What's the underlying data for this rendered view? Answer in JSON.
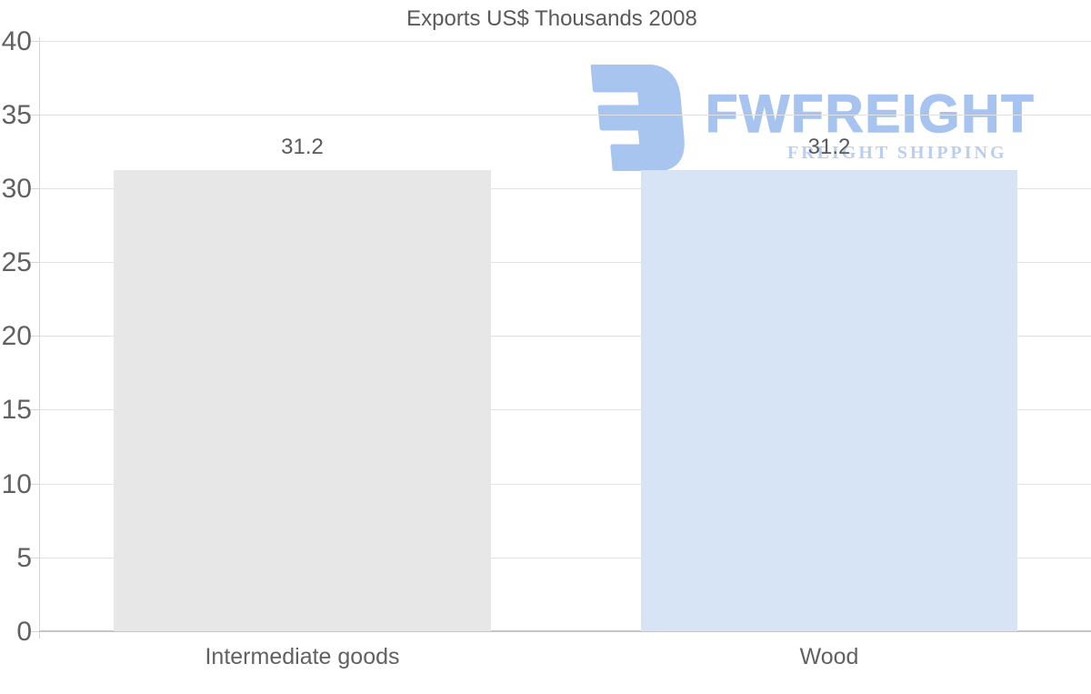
{
  "chart_data": {
    "type": "bar",
    "title": "Exports US$ Thousands 2008",
    "categories": [
      "Intermediate goods",
      "Wood"
    ],
    "values": [
      31.2,
      31.2
    ],
    "data_labels": [
      "31.2",
      "31.2"
    ],
    "xlabel": "",
    "ylabel": "",
    "ylim": [
      0,
      40
    ],
    "yticks": [
      0,
      5,
      10,
      15,
      20,
      25,
      30,
      35,
      40
    ],
    "grid": true,
    "legend": false,
    "bar_colors": [
      "#e7e7e7",
      "#d6e4f6"
    ]
  },
  "watermark": {
    "brand": "FWFREIGHT",
    "tagline": "FREIGHT SHIPPING",
    "icon": "fwfreight-logo-icon",
    "brand_color": "#a6c4ef",
    "tagline_color": "#b9cef2",
    "icon_color": "#a8c5f0"
  },
  "colors": {
    "title": "#5a5a5a",
    "axis_label": "#616161",
    "gridline": "#e2e2e2",
    "axis_line": "#d6d6d6",
    "baseline": "#c6c6c6",
    "value_label": "#5a5a5a",
    "background": "#ffffff"
  }
}
